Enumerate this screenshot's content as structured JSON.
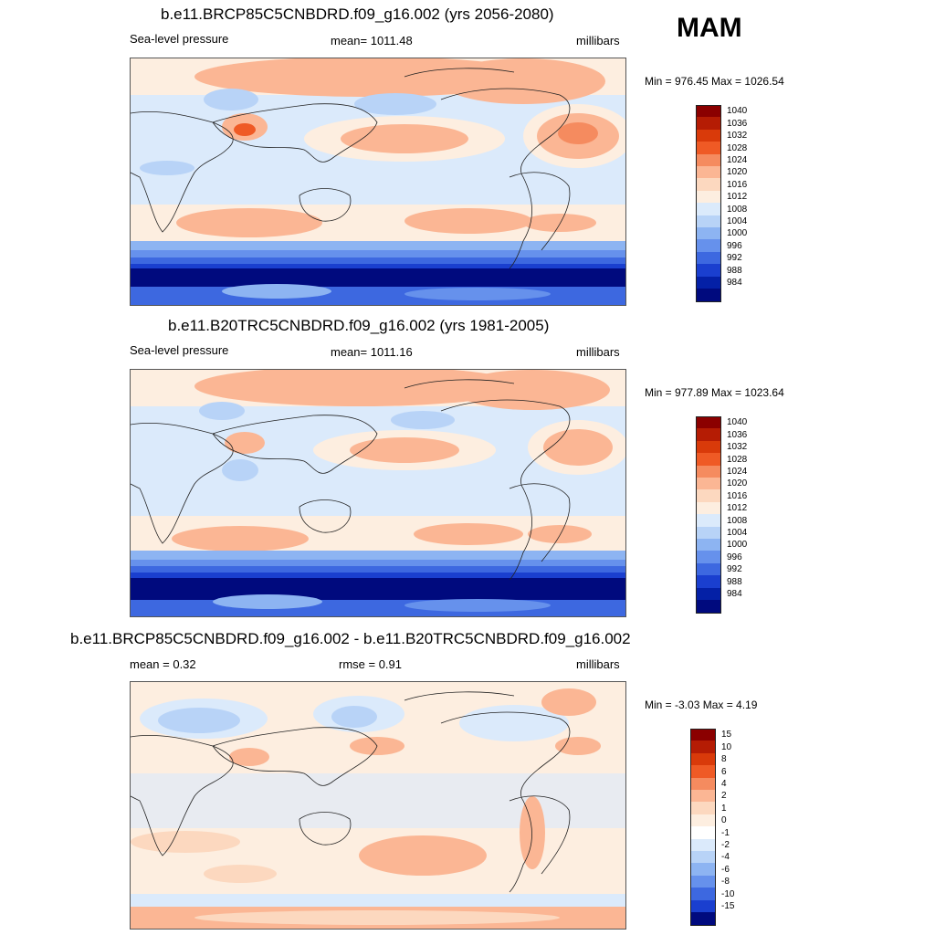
{
  "season": "MAM",
  "panels": [
    {
      "title": "b.e11.BRCP85C5CNBDRD.f09_g16.002 (yrs 2056-2080)",
      "left_label": "Sea-level pressure",
      "center_label": "mean= 1011.48",
      "units": "millibars",
      "minmax": "Min = 976.45 Max = 1026.54",
      "colorbar": {
        "labels": [
          "1040",
          "1036",
          "1032",
          "1028",
          "1024",
          "1020",
          "1016",
          "1012",
          "1008",
          "1004",
          "1000",
          "996",
          "992",
          "988",
          "984"
        ],
        "colors": [
          "#8b0000",
          "#b51c04",
          "#d93a0a",
          "#ef5a25",
          "#f58b5f",
          "#fbb694",
          "#fcd8bf",
          "#fdeee0",
          "#dbeafb",
          "#b8d3f7",
          "#8db4f2",
          "#6691ec",
          "#3d68e0",
          "#1a3fcf",
          "#0420a6",
          "#000a7e"
        ]
      }
    },
    {
      "title": "b.e11.B20TRC5CNBDRD.f09_g16.002 (yrs 1981-2005)",
      "left_label": "Sea-level pressure",
      "center_label": "mean= 1011.16",
      "units": "millibars",
      "minmax": "Min = 977.89 Max = 1023.64",
      "colorbar": {
        "labels": [
          "1040",
          "1036",
          "1032",
          "1028",
          "1024",
          "1020",
          "1016",
          "1012",
          "1008",
          "1004",
          "1000",
          "996",
          "992",
          "988",
          "984"
        ],
        "colors": [
          "#8b0000",
          "#b51c04",
          "#d93a0a",
          "#ef5a25",
          "#f58b5f",
          "#fbb694",
          "#fcd8bf",
          "#fdeee0",
          "#dbeafb",
          "#b8d3f7",
          "#8db4f2",
          "#6691ec",
          "#3d68e0",
          "#1a3fcf",
          "#0420a6",
          "#000a7e"
        ]
      }
    },
    {
      "title": "b.e11.BRCP85C5CNBDRD.f09_g16.002 - b.e11.B20TRC5CNBDRD.f09_g16.002",
      "left_label": "mean =   0.32",
      "center_label": "rmse =   0.91",
      "units": "millibars",
      "minmax": "Min =  -3.03 Max =   4.19",
      "colorbar": {
        "labels": [
          "15",
          "10",
          "8",
          "6",
          "4",
          "2",
          "1",
          "0",
          "-1",
          "-2",
          "-4",
          "-6",
          "-8",
          "-10",
          "-15"
        ],
        "colors": [
          "#8b0000",
          "#b51c04",
          "#d93a0a",
          "#ef5a25",
          "#f58b5f",
          "#fbb694",
          "#fcd8bf",
          "#fdeee0",
          "#ffffff",
          "#dbeafb",
          "#b8d3f7",
          "#8db4f2",
          "#6691ec",
          "#3d68e0",
          "#1a3fcf",
          "#000a7e"
        ]
      }
    }
  ]
}
